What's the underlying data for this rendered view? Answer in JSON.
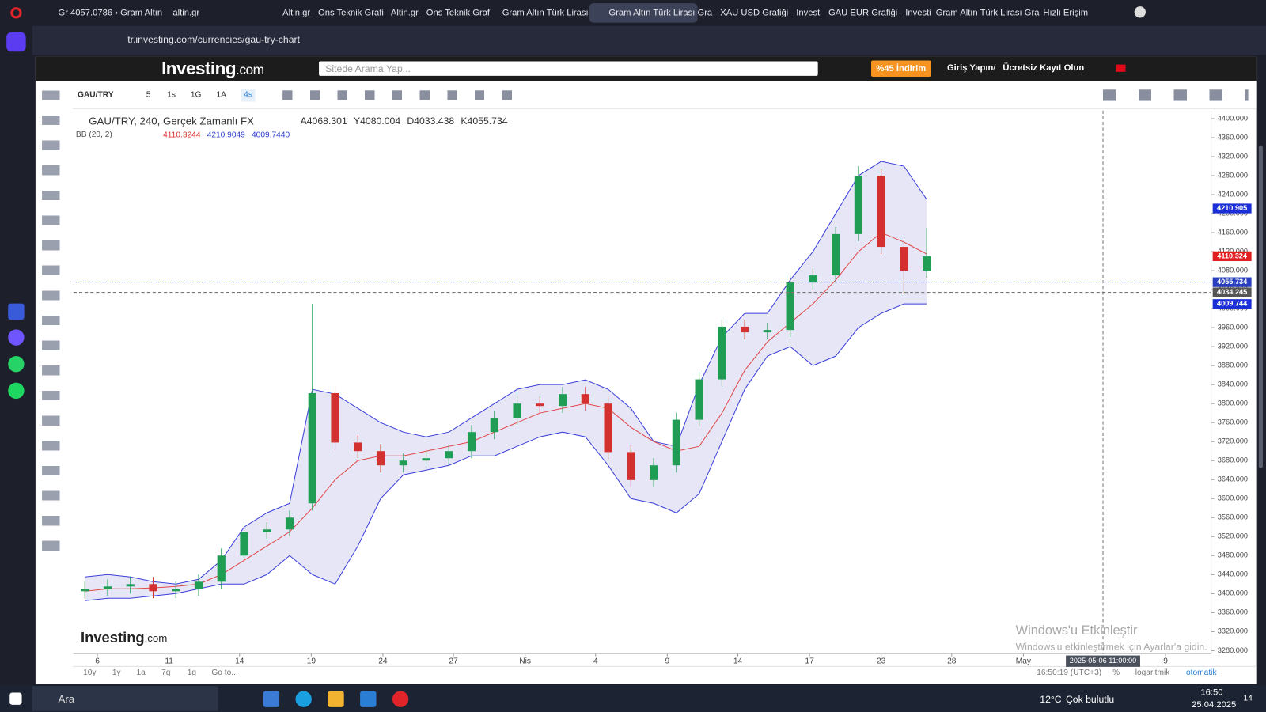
{
  "browser": {
    "tabs": [
      "Gr 4057.0786 › Gram Altın",
      "altin.gr",
      "Altin.gr - Ons Teknik Grafi",
      "Altin.gr - Ons Teknik Graf",
      "Gram Altın Türk Lirası Gra",
      "Gram Altın Türk Lirası Gra",
      "XAU USD Grafiği - Invest",
      "GAU EUR Grafiği - Investi",
      "Gram Altın Türk Lirası Gra",
      "Hızlı Erişim"
    ],
    "active_tab": 5,
    "url": "tr.investing.com/currencies/gau-try-chart"
  },
  "site": {
    "logo": "Investing",
    "logo_suffix": ".com",
    "search_placeholder": "Sitede Arama Yap...",
    "promo": "%45 İndirim",
    "login": "Giriş Yapın",
    "separator": "/",
    "register": "Ücretsiz Kayıt Olun"
  },
  "toolbar": {
    "symbol": "GAU/TRY",
    "intervals": [
      "5",
      "1s",
      "1G",
      "1A",
      "4s"
    ],
    "active_interval": 4
  },
  "bottom_bar": {
    "ranges": [
      "10y",
      "1y",
      "1a",
      "7g",
      "1g"
    ],
    "goto": "Go to...",
    "clock": "16:50:19 (UTC+3)",
    "percent": "%",
    "log": "logaritmik",
    "auto": "otomatik"
  },
  "windows_notice": {
    "title": "Windows'u Etkinleştir",
    "text": "Windows'u etkinleştirmek için Ayarlar'a gidin."
  },
  "taskbar": {
    "search": "Ara",
    "temperature": "12°C",
    "weather": "Çok bulutlu",
    "time": "16:50",
    "date": "25.04.2025",
    "notifications": "14"
  },
  "chart_data": {
    "type": "candlestick",
    "title": "GAU/TRY, 240, Gerçek Zamanlı FX",
    "ohlc_legend": [
      {
        "label": "A",
        "value": 4068.301
      },
      {
        "label": "Y",
        "value": 4080.004
      },
      {
        "label": "D",
        "value": 4033.438
      },
      {
        "label": "K",
        "value": 4055.734
      }
    ],
    "indicator": {
      "name": "BB (20, 2)",
      "values": [
        {
          "value": 4110.3244,
          "color": "#e03030"
        },
        {
          "value": 4210.9049,
          "color": "#2f3fd0"
        },
        {
          "value": 4009.744,
          "label": "4009.7440",
          "color": "#2f3fd0"
        }
      ]
    },
    "x": [
      1,
      3,
      5,
      7,
      9,
      11,
      13,
      15,
      17,
      19,
      21,
      23,
      25,
      27,
      29,
      31,
      33,
      35,
      37,
      39,
      41,
      43,
      45,
      47,
      49,
      51,
      53,
      55,
      57,
      59,
      61,
      63,
      65,
      67,
      69,
      71,
      73,
      75
    ],
    "open": [
      3405,
      3410,
      3415,
      3420,
      3405,
      3410,
      3425,
      3480,
      3530,
      3535,
      3590,
      3822,
      3718,
      3700,
      3670,
      3680,
      3685,
      3700,
      3740,
      3770,
      3800,
      3795,
      3820,
      3800,
      3698,
      3639,
      3670,
      3766,
      3851,
      3962,
      3950,
      3955,
      4055,
      4070,
      4157,
      4280,
      4130,
      4080
    ],
    "high": [
      3425,
      3430,
      3435,
      3435,
      3425,
      3440,
      3495,
      3545,
      3550,
      3575,
      4010,
      3837,
      3733,
      3715,
      3695,
      3700,
      3715,
      3755,
      3785,
      3815,
      3815,
      3835,
      3835,
      3815,
      3713,
      3685,
      3781,
      3866,
      3977,
      3977,
      3970,
      4070,
      4085,
      4172,
      4300,
      4295,
      4145,
      4170
    ],
    "low": [
      3390,
      3395,
      3400,
      3390,
      3390,
      3395,
      3410,
      3465,
      3515,
      3520,
      3575,
      3703,
      3685,
      3655,
      3655,
      3665,
      3670,
      3685,
      3725,
      3755,
      3780,
      3780,
      3785,
      3683,
      3624,
      3624,
      3655,
      3751,
      3836,
      3935,
      3935,
      3940,
      4040,
      4055,
      4142,
      4115,
      4030,
      4065
    ],
    "close": [
      3410,
      3415,
      3420,
      3405,
      3410,
      3425,
      3480,
      3530,
      3535,
      3560,
      3822,
      3718,
      3700,
      3670,
      3680,
      3685,
      3700,
      3740,
      3770,
      3800,
      3795,
      3820,
      3800,
      3698,
      3639,
      3670,
      3766,
      3851,
      3962,
      3950,
      3955,
      4055,
      4070,
      4157,
      4280,
      4130,
      4080,
      4110
    ],
    "up_color": "#1f9d55",
    "down_color": "#d3312f",
    "bands": {
      "upper": [
        3435,
        3440,
        3435,
        3425,
        3420,
        3430,
        3470,
        3540,
        3570,
        3590,
        3830,
        3820,
        3790,
        3760,
        3740,
        3730,
        3740,
        3770,
        3800,
        3830,
        3840,
        3840,
        3850,
        3830,
        3790,
        3720,
        3710,
        3840,
        3940,
        3990,
        3990,
        4060,
        4120,
        4200,
        4280,
        4310,
        4300,
        4230
      ],
      "middle": [
        3405,
        3410,
        3410,
        3412,
        3415,
        3420,
        3440,
        3470,
        3500,
        3530,
        3580,
        3640,
        3680,
        3690,
        3690,
        3700,
        3710,
        3720,
        3740,
        3760,
        3780,
        3790,
        3800,
        3790,
        3750,
        3720,
        3700,
        3710,
        3780,
        3870,
        3930,
        3970,
        4010,
        4060,
        4120,
        4160,
        4140,
        4115
      ],
      "lower": [
        3385,
        3390,
        3390,
        3395,
        3400,
        3410,
        3420,
        3420,
        3440,
        3480,
        3440,
        3420,
        3500,
        3600,
        3650,
        3660,
        3670,
        3690,
        3690,
        3710,
        3730,
        3740,
        3730,
        3670,
        3600,
        3590,
        3570,
        3610,
        3720,
        3830,
        3900,
        3920,
        3880,
        3900,
        3960,
        3990,
        4010,
        4010
      ],
      "band_color": "#3b3fd8",
      "fill_color": "#dcdcf3",
      "middle_color": "#e04848"
    },
    "xlim": [
      0,
      100
    ],
    "ylim": [
      3273,
      4417
    ],
    "grid": false,
    "xticks": [
      {
        "value": 2.1,
        "label": "6"
      },
      {
        "value": 8.4,
        "label": "11"
      },
      {
        "value": 14.6,
        "label": "14"
      },
      {
        "value": 20.9,
        "label": "19"
      },
      {
        "value": 27.2,
        "label": "24"
      },
      {
        "value": 33.4,
        "label": "27"
      },
      {
        "value": 39.7,
        "label": "Nis"
      },
      {
        "value": 45.9,
        "label": "4"
      },
      {
        "value": 52.2,
        "label": "9"
      },
      {
        "value": 58.4,
        "label": "14"
      },
      {
        "value": 64.7,
        "label": "17"
      },
      {
        "value": 71,
        "label": "23"
      },
      {
        "value": 77.2,
        "label": "28"
      },
      {
        "value": 83.5,
        "label": "May"
      },
      {
        "value": 96,
        "label": "9"
      }
    ],
    "yticks": [
      {
        "value": 3280,
        "label": "3280.000"
      },
      {
        "value": 3320,
        "label": "3320.000"
      },
      {
        "value": 3360,
        "label": "3360.000"
      },
      {
        "value": 3400,
        "label": "3400.000"
      },
      {
        "value": 3440,
        "label": "3440.000"
      },
      {
        "value": 3480,
        "label": "3480.000"
      },
      {
        "value": 3520,
        "label": "3520.000"
      },
      {
        "value": 3560,
        "label": "3560.000"
      },
      {
        "value": 3600,
        "label": "3600.000"
      },
      {
        "value": 3640,
        "label": "3640.000"
      },
      {
        "value": 3680,
        "label": "3680.000"
      },
      {
        "value": 3720,
        "label": "3720.000"
      },
      {
        "value": 3760,
        "label": "3760.000"
      },
      {
        "value": 3800,
        "label": "3800.000"
      },
      {
        "value": 3840,
        "label": "3840.000"
      },
      {
        "value": 3880,
        "label": "3880.000"
      },
      {
        "value": 3920,
        "label": "3920.000"
      },
      {
        "value": 3960,
        "label": "3960.000"
      },
      {
        "value": 4000,
        "label": "4000.000"
      },
      {
        "value": 4040,
        "label": "4040.000"
      },
      {
        "value": 4080,
        "label": "4080.000"
      },
      {
        "value": 4120,
        "label": "4120.000"
      },
      {
        "value": 4160,
        "label": "4160.000"
      },
      {
        "value": 4200,
        "label": "4200.000"
      },
      {
        "value": 4240,
        "label": "4240.000"
      },
      {
        "value": 4280,
        "label": "4280.000"
      },
      {
        "value": 4320,
        "label": "4320.000"
      },
      {
        "value": 4360,
        "label": "4360.000"
      },
      {
        "value": 4400,
        "label": "4400.000"
      }
    ],
    "price_tags": [
      {
        "value": 4210.905,
        "color": "#1a2fd6"
      },
      {
        "value": 4110.324,
        "color": "#e02020"
      },
      {
        "value": 4055.734,
        "color": "#2a3fbf"
      },
      {
        "value": 4034.245,
        "color": "#555555"
      },
      {
        "value": 4009.744,
        "color": "#1a2fd6"
      }
    ],
    "crosshair": {
      "x": 90.5,
      "label": "2025-05-06 11:00:00"
    }
  }
}
